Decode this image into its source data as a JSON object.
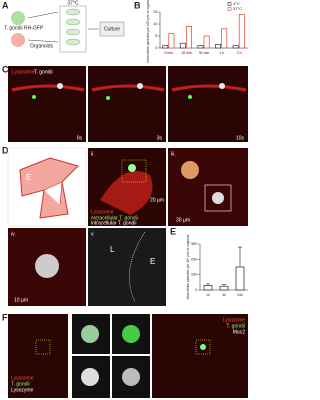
{
  "figure": {
    "panel_labels": [
      "A",
      "B",
      "C",
      "D",
      "E",
      "F"
    ],
    "a": {
      "parasite": "T. gondii RH-GFP",
      "organoids": "Organoids",
      "temperature": "37°C",
      "culture": "Culture"
    },
    "c": {
      "lysosome": "Lysosome",
      "parasite": "T. gondii",
      "times": [
        "0s",
        "3s",
        "10s"
      ]
    },
    "d": {
      "sub_labels": [
        "i.",
        "ii.",
        "iii.",
        "iv.",
        "v."
      ],
      "epithelium": "E",
      "lumen": "L",
      "legend": [
        "Lysosome",
        "extracellular T. gondii",
        "intracellular T. gondii"
      ],
      "scales": [
        "20 µm",
        "30 µm",
        "10 µm"
      ]
    },
    "f": {
      "left": [
        "Lysosome",
        "T. gondii",
        "Lysozyme"
      ],
      "right": [
        "Lysozyme",
        "T. gondii",
        "Muc2"
      ]
    }
  },
  "chart_data": [
    {
      "type": "bar",
      "y_label": "Intracellular parasites per 100 µm² of organoid",
      "categories": [
        "5 min",
        "15 min",
        "30 min",
        "1 h",
        "2 h"
      ],
      "series": [
        {
          "name": "4°C",
          "color": "#333333",
          "values": [
            1,
            2,
            1,
            1.5,
            1
          ]
        },
        {
          "name": "37°C",
          "color": "#e8402a",
          "values": [
            6,
            9,
            5,
            8,
            14
          ]
        }
      ],
      "ylim": [
        0,
        15
      ],
      "yticks": [
        0,
        5,
        10,
        15
      ]
    },
    {
      "type": "bar",
      "y_label": "Intracellular parasites per 10⁶ µm² of organoid",
      "categories": [
        "1h",
        "4h",
        "24h"
      ],
      "values": [
        30,
        25,
        150
      ],
      "errors": [
        10,
        10,
        130
      ],
      "color": "#222222",
      "ylim": [
        0,
        300
      ],
      "yticks": [
        0,
        100,
        200,
        300
      ]
    }
  ]
}
